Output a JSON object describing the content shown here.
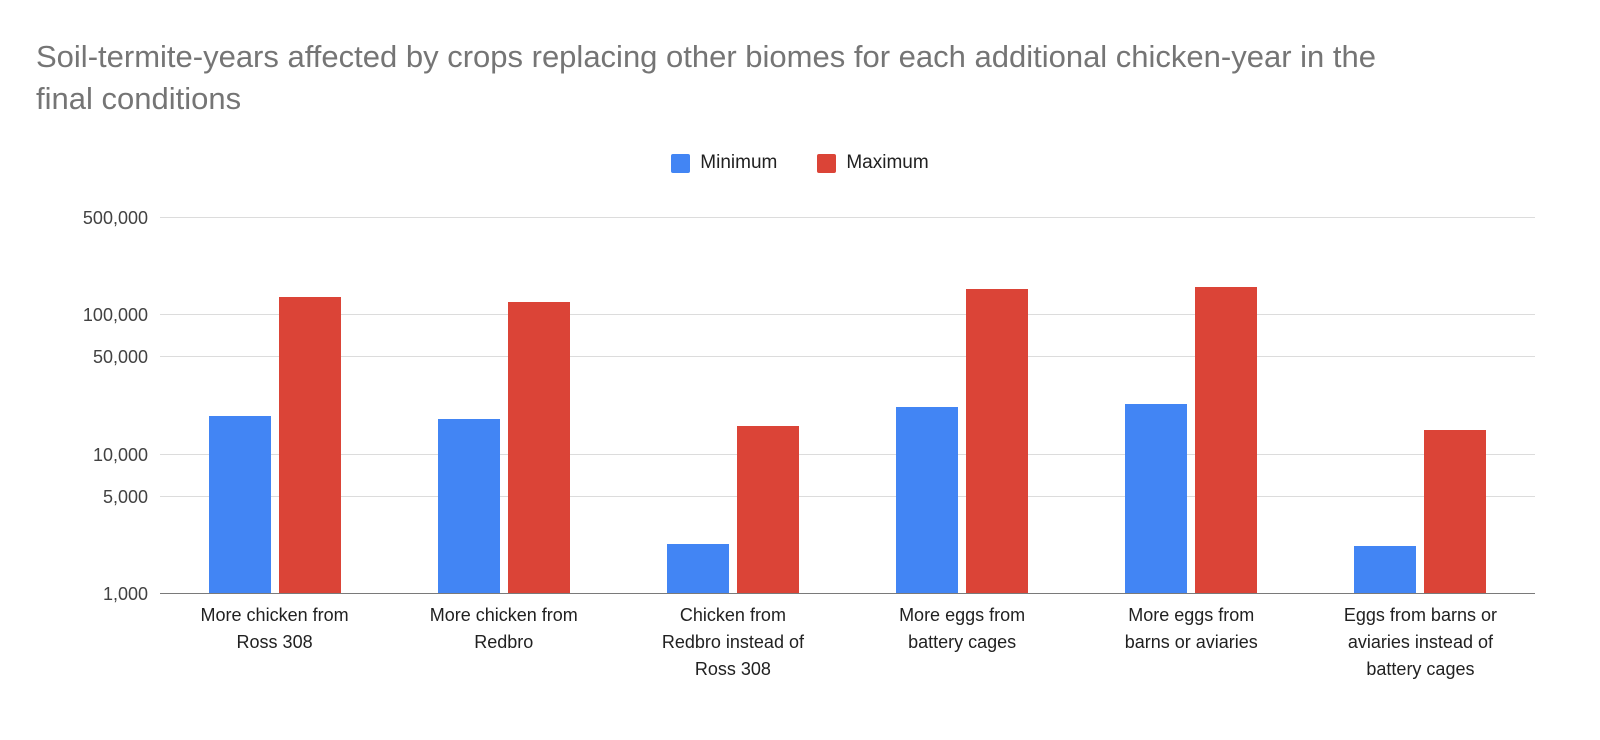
{
  "chart_data": {
    "type": "bar",
    "title": "Soil-termite-years affected by crops replacing other biomes for each additional chicken-year in the final conditions",
    "categories": [
      "More chicken from Ross 308",
      "More chicken from Redbro",
      "Chicken from Redbro instead of Ross 308",
      "More eggs from battery cages",
      "More eggs from barns or aviaries",
      "Eggs from barns or aviaries instead of battery cages"
    ],
    "series": [
      {
        "name": "Minimum",
        "color": "#4285F4",
        "values": [
          19000,
          18000,
          2300,
          22000,
          23000,
          2200
        ]
      },
      {
        "name": "Maximum",
        "color": "#DB4437",
        "values": [
          135000,
          125000,
          16000,
          155000,
          160000,
          15000
        ]
      }
    ],
    "xlabel": "",
    "ylabel": "",
    "y_scale": "log",
    "ylim": [
      1000,
      500000
    ],
    "yticks": [
      1000,
      5000,
      10000,
      50000,
      100000,
      500000
    ],
    "ytick_labels": [
      "1,000",
      "5,000",
      "10,000",
      "50,000",
      "100,000",
      "500,000"
    ],
    "legend_position": "top",
    "grid": true,
    "background": "#ffffff"
  }
}
